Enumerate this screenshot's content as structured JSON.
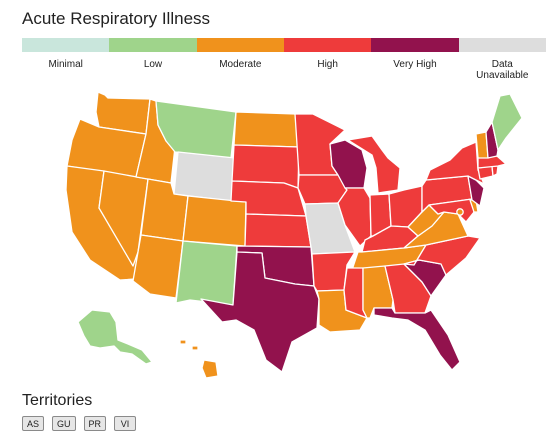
{
  "title": "Acute Respiratory Illness",
  "levels": {
    "minimal": {
      "label": "Minimal",
      "color": "#c9e6dc"
    },
    "low": {
      "label": "Low",
      "color": "#9fd48b"
    },
    "moderate": {
      "label": "Moderate",
      "color": "#f0921c"
    },
    "high": {
      "label": "High",
      "color": "#ee3b3b"
    },
    "very_high": {
      "label": "Very High",
      "color": "#92124d"
    },
    "unavailable": {
      "label": "Data Unavailable",
      "color": "#dddddd"
    }
  },
  "legend_order": [
    "minimal",
    "low",
    "moderate",
    "high",
    "very_high",
    "unavailable"
  ],
  "states": {
    "WA": "moderate",
    "OR": "moderate",
    "CA": "moderate",
    "NV": "moderate",
    "ID": "moderate",
    "MT": "low",
    "WY": "unavailable",
    "UT": "moderate",
    "AZ": "moderate",
    "CO": "moderate",
    "NM": "low",
    "ND": "moderate",
    "SD": "high",
    "NE": "high",
    "KS": "high",
    "OK": "very_high",
    "TX": "very_high",
    "MN": "high",
    "IA": "high",
    "MO": "unavailable",
    "AR": "high",
    "LA": "moderate",
    "WI": "very_high",
    "IL": "high",
    "MI": "high",
    "IN": "high",
    "OH": "high",
    "KY": "high",
    "TN": "moderate",
    "MS": "high",
    "AL": "moderate",
    "GA": "high",
    "FL": "very_high",
    "SC": "very_high",
    "NC": "high",
    "VA": "moderate",
    "WV": "moderate",
    "MD": "high",
    "DE": "moderate",
    "DC": "moderate",
    "PA": "high",
    "NJ": "very_high",
    "NY": "high",
    "CT": "high",
    "RI": "high",
    "MA": "high",
    "VT": "moderate",
    "NH": "very_high",
    "ME": "low",
    "AK": "low",
    "HI": "moderate"
  },
  "territories": {
    "heading": "Territories",
    "items": [
      "AS",
      "GU",
      "PR",
      "VI"
    ]
  }
}
